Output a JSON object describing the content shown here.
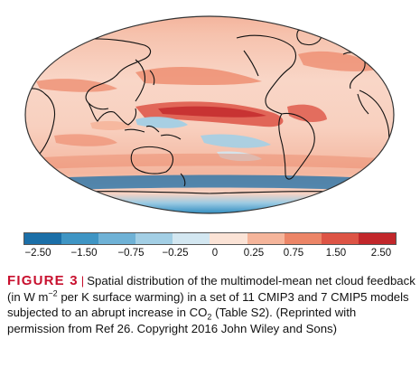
{
  "figure": {
    "label": "FIGURE 3",
    "separator": "|",
    "caption": {
      "part1": "Spatial distribution of the multimodel-mean net cloud feedback (in W m",
      "exp": "−2",
      "part2": " per K surface warming) in a set of 11 CMIP3 and 7 CMIP5 models subjected to an abrupt increase in CO",
      "sub": "2",
      "part3": " (Table S2). (Reprinted with permission from Ref 26. Copyright 2016 John Wiley and Sons)"
    }
  },
  "colorbar": {
    "ticks": [
      "−2.50",
      "−1.50",
      "−0.75",
      "−0.25",
      "0",
      "0.25",
      "0.75",
      "1.50",
      "2.50"
    ],
    "colors": [
      "#1b6fa8",
      "#3f95c4",
      "#6fb2d6",
      "#a3cfe5",
      "#d3e7f1",
      "#fbe3d6",
      "#f5b59b",
      "#ec8567",
      "#dd5445",
      "#c2272b"
    ]
  }
}
